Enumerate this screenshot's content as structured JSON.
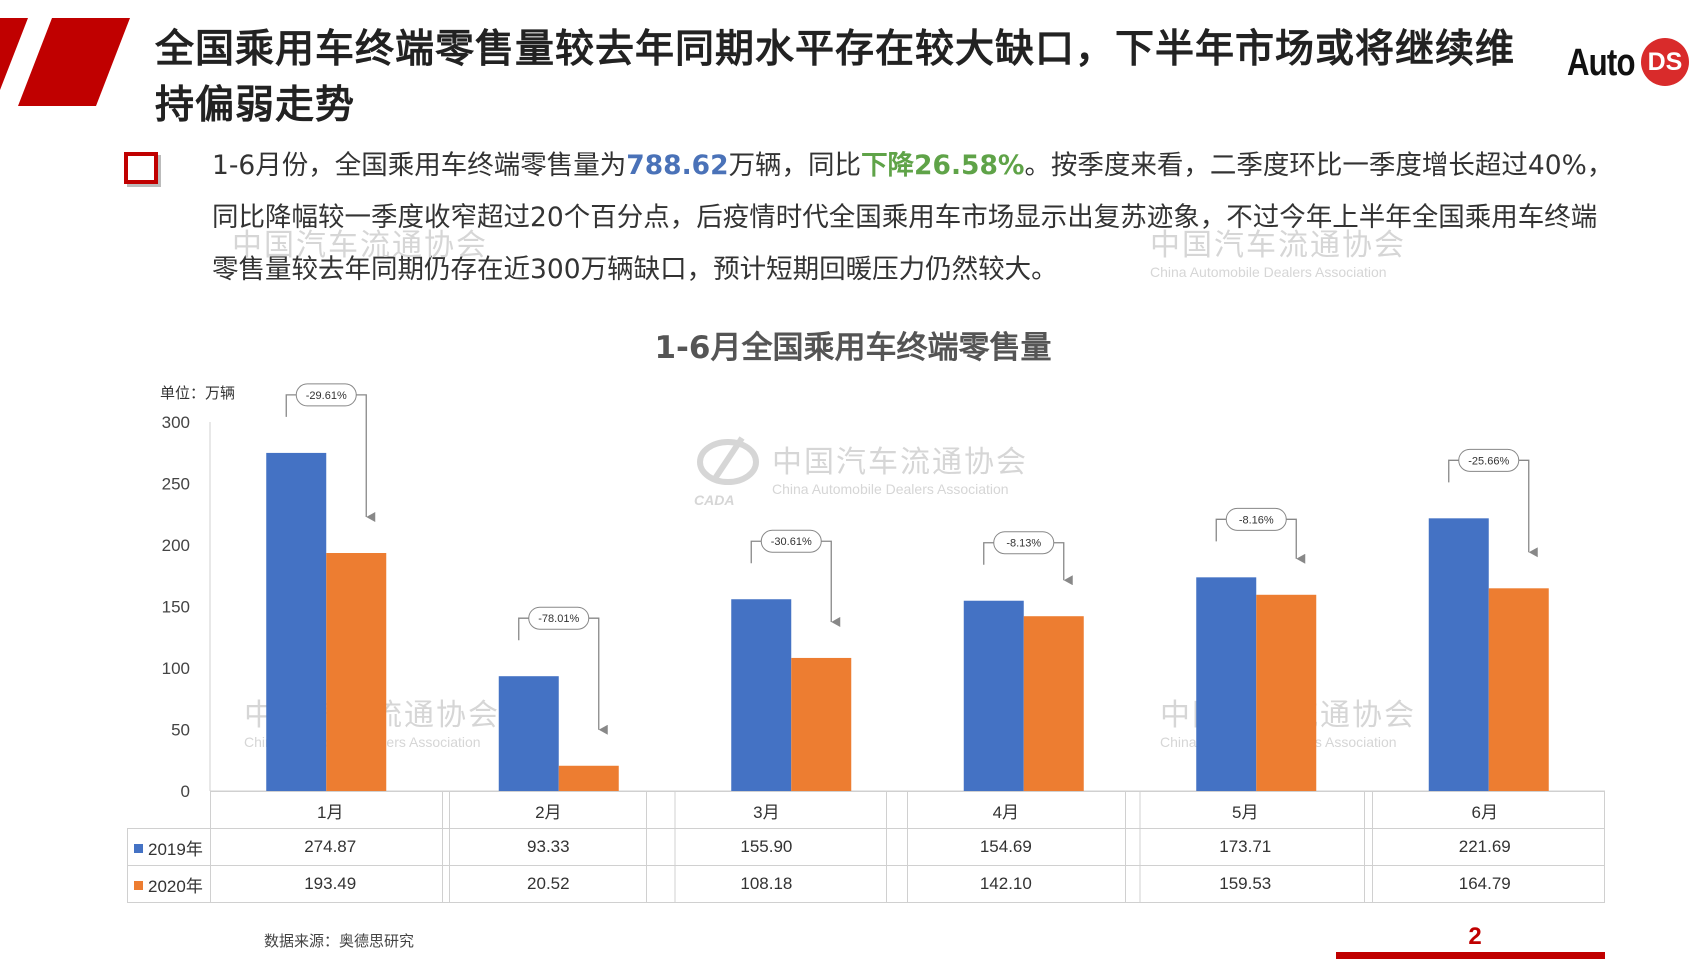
{
  "header": {
    "title": "全国乘用车终端零售量较去年同期水平存在较大缺口，下半年市场或将继续维持偏弱走势",
    "brand": {
      "word": "Auto",
      "badge": "DS"
    }
  },
  "summary": {
    "text_1": "1-6月份，全国乘用车终端零售量为",
    "highlight_volume": "788.62",
    "text_2": "万辆，同比",
    "highlight_decline": "下降26.58%",
    "text_3": "。按季度来看，二季度环比一季度增长超过40%，同比降幅较一季度收窄超过20个百分点，后疫情时代全国乘用车市场显示出复苏迹象，不过今年上半年全国乘用车终端零售量较去年同期仍存在近300万辆缺口，预计短期回暖压力仍然较大。"
  },
  "watermark": {
    "cn": "中国汽车流通协会",
    "en": "China Automobile Dealers Association",
    "logo_text": "CADA"
  },
  "chart_data": {
    "type": "bar",
    "title": "1-6月全国乘用车终端零售量",
    "unit_label": "单位：万辆",
    "categories": [
      "1月",
      "2月",
      "3月",
      "4月",
      "5月",
      "6月"
    ],
    "series": [
      {
        "name": "2019年",
        "color": "#4472c4",
        "values": [
          274.87,
          93.33,
          155.9,
          154.69,
          173.71,
          221.69
        ]
      },
      {
        "name": "2020年",
        "color": "#ed7d31",
        "values": [
          193.49,
          20.52,
          108.18,
          142.1,
          159.53,
          164.79
        ]
      }
    ],
    "change_labels": [
      "-29.61%",
      "-78.01%",
      "-30.61%",
      "-8.13%",
      "-8.16%",
      "-25.66%"
    ],
    "ylim": [
      0,
      300
    ],
    "yticks": [
      0,
      50,
      100,
      150,
      200,
      250,
      300
    ],
    "table": {
      "rows": [
        {
          "label": "2019年",
          "color": "#4472c4",
          "values": [
            "274.87",
            "93.33",
            "155.90",
            "154.69",
            "173.71",
            "221.69"
          ]
        },
        {
          "label": "2020年",
          "color": "#ed7d31",
          "values": [
            "193.49",
            "20.52",
            "108.18",
            "142.10",
            "159.53",
            "164.79"
          ]
        }
      ]
    }
  },
  "footer": {
    "source": "数据来源：奥德思研究",
    "page_number": "2"
  },
  "colors": {
    "accent_red": "#c00000",
    "blue": "#4472c4",
    "orange": "#ed7d31",
    "green": "#5fa348"
  }
}
